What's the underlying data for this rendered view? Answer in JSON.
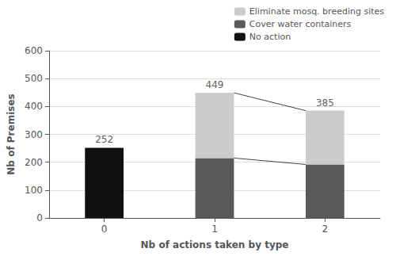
{
  "chart_data": {
    "type": "bar",
    "stacked": true,
    "xlabel": "Nb of actions taken by type",
    "ylabel": "Nb of Premises",
    "categories": [
      "0",
      "1",
      "2"
    ],
    "series": [
      {
        "name": "No action",
        "color": "#111111",
        "values": [
          252,
          0,
          0
        ]
      },
      {
        "name": "Cover water containers",
        "color": "#595959",
        "values": [
          0,
          215,
          192
        ]
      },
      {
        "name": "Eliminate mosq. breeding sites",
        "color": "#cccccc",
        "values": [
          0,
          234,
          193
        ]
      }
    ],
    "totals": [
      252,
      449,
      385
    ],
    "ylim": [
      0,
      600
    ],
    "yticks": [
      0,
      100,
      200,
      300,
      400,
      500,
      600
    ],
    "grid": true,
    "legend": "upper right"
  }
}
